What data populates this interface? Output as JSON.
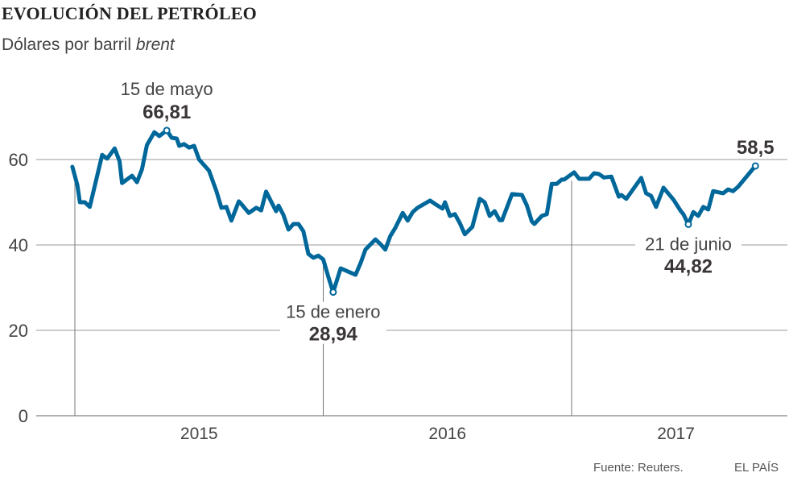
{
  "header": {
    "title": "EVOLUCIÓN DEL PETRÓLEO",
    "subtitle_prefix": "Dólares por barril ",
    "subtitle_italic": "brent"
  },
  "footer": {
    "source": "Fuente: Reuters.",
    "brand": "EL PAÍS"
  },
  "colors": {
    "line": "#00679a",
    "grid": "#9a9a9a",
    "text": "#3a3536"
  },
  "chart_data": {
    "type": "line",
    "title": "EVOLUCIÓN DEL PETRÓLEO",
    "subtitle": "Dólares por barril brent",
    "xlabel": "",
    "ylabel": "Dólares por barril",
    "xlim": [
      2014.84,
      2017.87
    ],
    "ylim": [
      0,
      70
    ],
    "yticks": [
      0,
      20,
      40,
      60
    ],
    "ytick_labels": [
      "0",
      "20",
      "40",
      "60"
    ],
    "xtick_labels": [
      {
        "label": "2015",
        "at": 2015.5,
        "boundary": 2015
      },
      {
        "label": "2016",
        "at": 2016.5,
        "boundary": 2016
      },
      {
        "label": "2017",
        "at": 2017.42,
        "boundary": 2017
      }
    ],
    "grid": true,
    "series": [
      {
        "name": "Brent",
        "x": [
          2014.99,
          2015.01,
          2015.02,
          2015.04,
          2015.06,
          2015.11,
          2015.13,
          2015.16,
          2015.18,
          2015.19,
          2015.23,
          2015.25,
          2015.27,
          2015.29,
          2015.32,
          2015.34,
          2015.37,
          2015.39,
          2015.41,
          2015.42,
          2015.44,
          2015.46,
          2015.48,
          2015.5,
          2015.54,
          2015.57,
          2015.59,
          2015.61,
          2015.63,
          2015.66,
          2015.67,
          2015.7,
          2015.73,
          2015.75,
          2015.77,
          2015.81,
          2015.82,
          2015.84,
          2015.86,
          2015.88,
          2015.9,
          2015.92,
          2015.94,
          2015.96,
          2015.98,
          2016.0,
          2016.02,
          2016.04,
          2016.07,
          2016.13,
          2016.15,
          2016.17,
          2016.21,
          2016.23,
          2016.25,
          2016.27,
          2016.29,
          2016.32,
          2016.34,
          2016.36,
          2016.38,
          2016.43,
          2016.45,
          2016.48,
          2016.49,
          2016.51,
          2016.53,
          2016.55,
          2016.57,
          2016.6,
          2016.63,
          2016.65,
          2016.67,
          2016.69,
          2016.71,
          2016.72,
          2016.76,
          2016.8,
          2016.82,
          2016.84,
          2016.85,
          2016.88,
          2016.9,
          2016.92,
          2016.94,
          2016.96,
          2016.97,
          2017.01,
          2017.03,
          2017.07,
          2017.09,
          2017.11,
          2017.13,
          2017.16,
          2017.19,
          2017.2,
          2017.22,
          2017.28,
          2017.3,
          2017.32,
          2017.34,
          2017.37,
          2017.41,
          2017.44,
          2017.45,
          2017.47,
          2017.49,
          2017.51,
          2017.53,
          2017.55,
          2017.57,
          2017.61,
          2017.63,
          2017.65,
          2017.67,
          2017.74
        ],
        "values": [
          58.3,
          54.0,
          50.0,
          50.0,
          48.9,
          61.1,
          60.2,
          62.6,
          59.6,
          54.5,
          56.2,
          54.7,
          57.7,
          63.4,
          66.4,
          65.5,
          66.81,
          65.1,
          64.9,
          63.2,
          63.6,
          62.8,
          63.2,
          60.0,
          57.4,
          52.6,
          48.7,
          48.9,
          45.7,
          50.2,
          49.6,
          47.5,
          48.7,
          48.1,
          52.5,
          47.9,
          49.2,
          47.0,
          43.6,
          44.9,
          44.9,
          43.2,
          37.9,
          37.0,
          37.5,
          36.6,
          32.6,
          28.94,
          34.5,
          33.0,
          35.7,
          38.9,
          41.3,
          40.2,
          38.9,
          42.1,
          44.0,
          47.5,
          45.7,
          47.7,
          48.7,
          50.4,
          49.6,
          48.5,
          50.0,
          46.8,
          47.2,
          45.1,
          42.5,
          44.2,
          50.8,
          50.0,
          46.8,
          47.9,
          45.8,
          45.8,
          51.9,
          51.7,
          49.2,
          45.5,
          44.9,
          46.8,
          47.2,
          54.3,
          54.3,
          55.3,
          55.3,
          57.0,
          55.5,
          55.5,
          56.8,
          56.6,
          55.8,
          56.0,
          51.3,
          51.7,
          50.8,
          55.7,
          52.1,
          51.5,
          48.9,
          53.4,
          50.6,
          47.9,
          47.2,
          44.82,
          47.7,
          46.8,
          48.9,
          48.3,
          52.6,
          52.1,
          53.0,
          52.6,
          53.6,
          58.5
        ]
      }
    ],
    "annotations": [
      {
        "date": "15 de mayo",
        "value": "66,81",
        "x": 2015.37,
        "y": 66.81,
        "pos": "above"
      },
      {
        "date": "15 de enero",
        "value": "28,94",
        "x": 2016.04,
        "y": 28.94,
        "pos": "below"
      },
      {
        "date": "21 de junio",
        "value": "44,82",
        "x": 2017.47,
        "y": 44.82,
        "pos": "below"
      },
      {
        "date": "",
        "value": "58,5",
        "x": 2017.74,
        "y": 58.5,
        "pos": "above"
      }
    ]
  }
}
